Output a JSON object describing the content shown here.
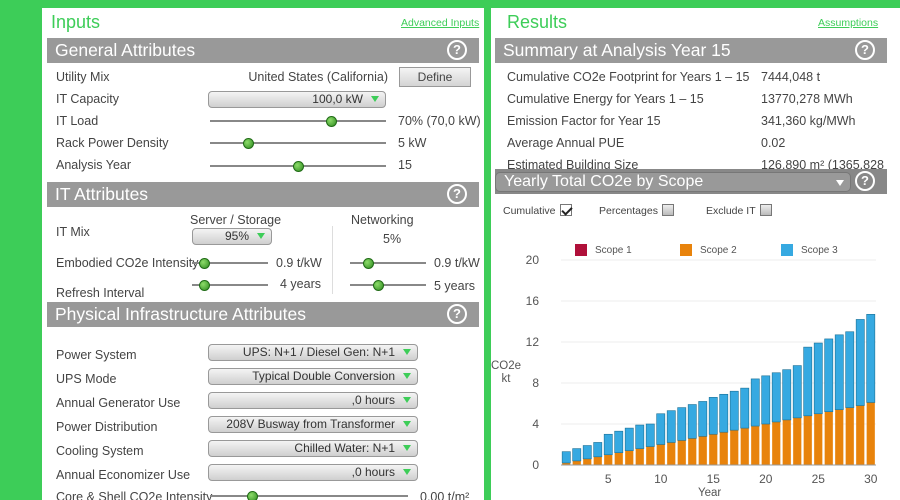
{
  "inputs": {
    "title": "Inputs",
    "advanced_link": "Advanced Inputs",
    "general": {
      "title": "General Attributes",
      "utility_mix": {
        "label": "Utility Mix",
        "value": "United States (California)",
        "button": "Define"
      },
      "it_capacity": {
        "label": "IT Capacity",
        "value": "100,0 kW"
      },
      "it_load": {
        "label": "IT Load",
        "value": "70% (70,0 kW)",
        "level": 0.7
      },
      "rack_density": {
        "label": "Rack Power Density",
        "value": "5 kW",
        "level": 0.2
      },
      "analysis_year": {
        "label": "Analysis Year",
        "value": "15",
        "level": 0.5
      }
    },
    "it": {
      "title": "IT Attributes",
      "server_header": "Server / Storage",
      "net_header": "Networking",
      "it_mix": {
        "label": "IT Mix",
        "server": "95%",
        "net": "5%"
      },
      "embodied": {
        "label": "Embodied CO2e Intensity",
        "server": "0.9 t/kW",
        "net": "0.9 t/kW",
        "server_level": 0.1,
        "net_level": 0.2
      },
      "refresh": {
        "label": "Refresh Interval",
        "server": "4 years",
        "net": "5 years",
        "server_level": 0.1,
        "net_level": 0.35
      }
    },
    "physical": {
      "title": "Physical Infrastructure Attributes",
      "rows": [
        {
          "label": "Power System",
          "value": "UPS: N+1 / Diesel Gen: N+1"
        },
        {
          "label": "UPS Mode",
          "value": "Typical Double Conversion"
        },
        {
          "label": "Annual Generator Use",
          "value": ",0 hours"
        },
        {
          "label": "Power Distribution",
          "value": "208V Busway from Transformer"
        },
        {
          "label": "Cooling System",
          "value": "Chilled Water: N+1"
        },
        {
          "label": "Annual Economizer Use",
          "value": ",0 hours"
        }
      ],
      "core_shell": {
        "label": "Core & Shell CO2e Intensity",
        "value": "0.00 t/m²",
        "level": 0.2
      }
    }
  },
  "results": {
    "title": "Results",
    "assumptions_link": "Assumptions",
    "summary": {
      "title": "Summary at Analysis Year 15",
      "rows": [
        {
          "label": "Cumulative CO2e Footprint for Years 1 – 15",
          "value": "7444,048 t"
        },
        {
          "label": "Cumulative Energy for Years 1 – 15",
          "value": "13770,278 MWh"
        },
        {
          "label": "Emission Factor for Year 15",
          "value": "341,360 kg/MWh"
        },
        {
          "label": "Average Annual PUE",
          "value": "0.02"
        },
        {
          "label": "Estimated Building Size",
          "value": "126,890 m² (1365,828"
        }
      ]
    },
    "chart_select": "Yearly Total CO2e by Scope",
    "options": {
      "cumulative": "Cumulative",
      "percentages": "Percentages",
      "exclude_it": "Exclude IT"
    }
  },
  "chart_data": {
    "type": "bar",
    "stacked": true,
    "ylabel": "CO2e kt",
    "xlabel": "Year",
    "ylim": [
      0,
      20
    ],
    "yticks": [
      0,
      4,
      8,
      12,
      16,
      20
    ],
    "xticks": [
      5,
      10,
      15,
      20,
      25,
      30
    ],
    "x": [
      1,
      2,
      3,
      4,
      5,
      6,
      7,
      8,
      9,
      10,
      11,
      12,
      13,
      14,
      15,
      16,
      17,
      18,
      19,
      20,
      21,
      22,
      23,
      24,
      25,
      26,
      27,
      28,
      29,
      30
    ],
    "series": [
      {
        "name": "Scope 1",
        "color": "#b0103a",
        "values": [
          0,
          0,
          0,
          0,
          0,
          0,
          0,
          0,
          0,
          0,
          0,
          0,
          0,
          0,
          0,
          0,
          0,
          0,
          0,
          0,
          0,
          0,
          0,
          0,
          0,
          0,
          0,
          0,
          0,
          0
        ]
      },
      {
        "name": "Scope 2",
        "color": "#e8830c",
        "values": [
          0.2,
          0.4,
          0.6,
          0.8,
          1.0,
          1.2,
          1.4,
          1.6,
          1.8,
          2.0,
          2.2,
          2.4,
          2.6,
          2.8,
          3.0,
          3.2,
          3.4,
          3.6,
          3.8,
          4.0,
          4.2,
          4.4,
          4.6,
          4.8,
          5.0,
          5.2,
          5.4,
          5.6,
          5.8,
          6.1
        ]
      },
      {
        "name": "Scope 3",
        "color": "#36a9e1",
        "values": [
          1.1,
          1.2,
          1.3,
          1.4,
          2.0,
          2.1,
          2.2,
          2.3,
          2.2,
          3.0,
          3.1,
          3.2,
          3.3,
          3.4,
          3.6,
          3.7,
          3.8,
          3.9,
          4.6,
          4.7,
          4.8,
          4.9,
          5.1,
          6.7,
          6.9,
          7.1,
          7.3,
          7.4,
          8.4,
          8.6
        ]
      }
    ]
  }
}
